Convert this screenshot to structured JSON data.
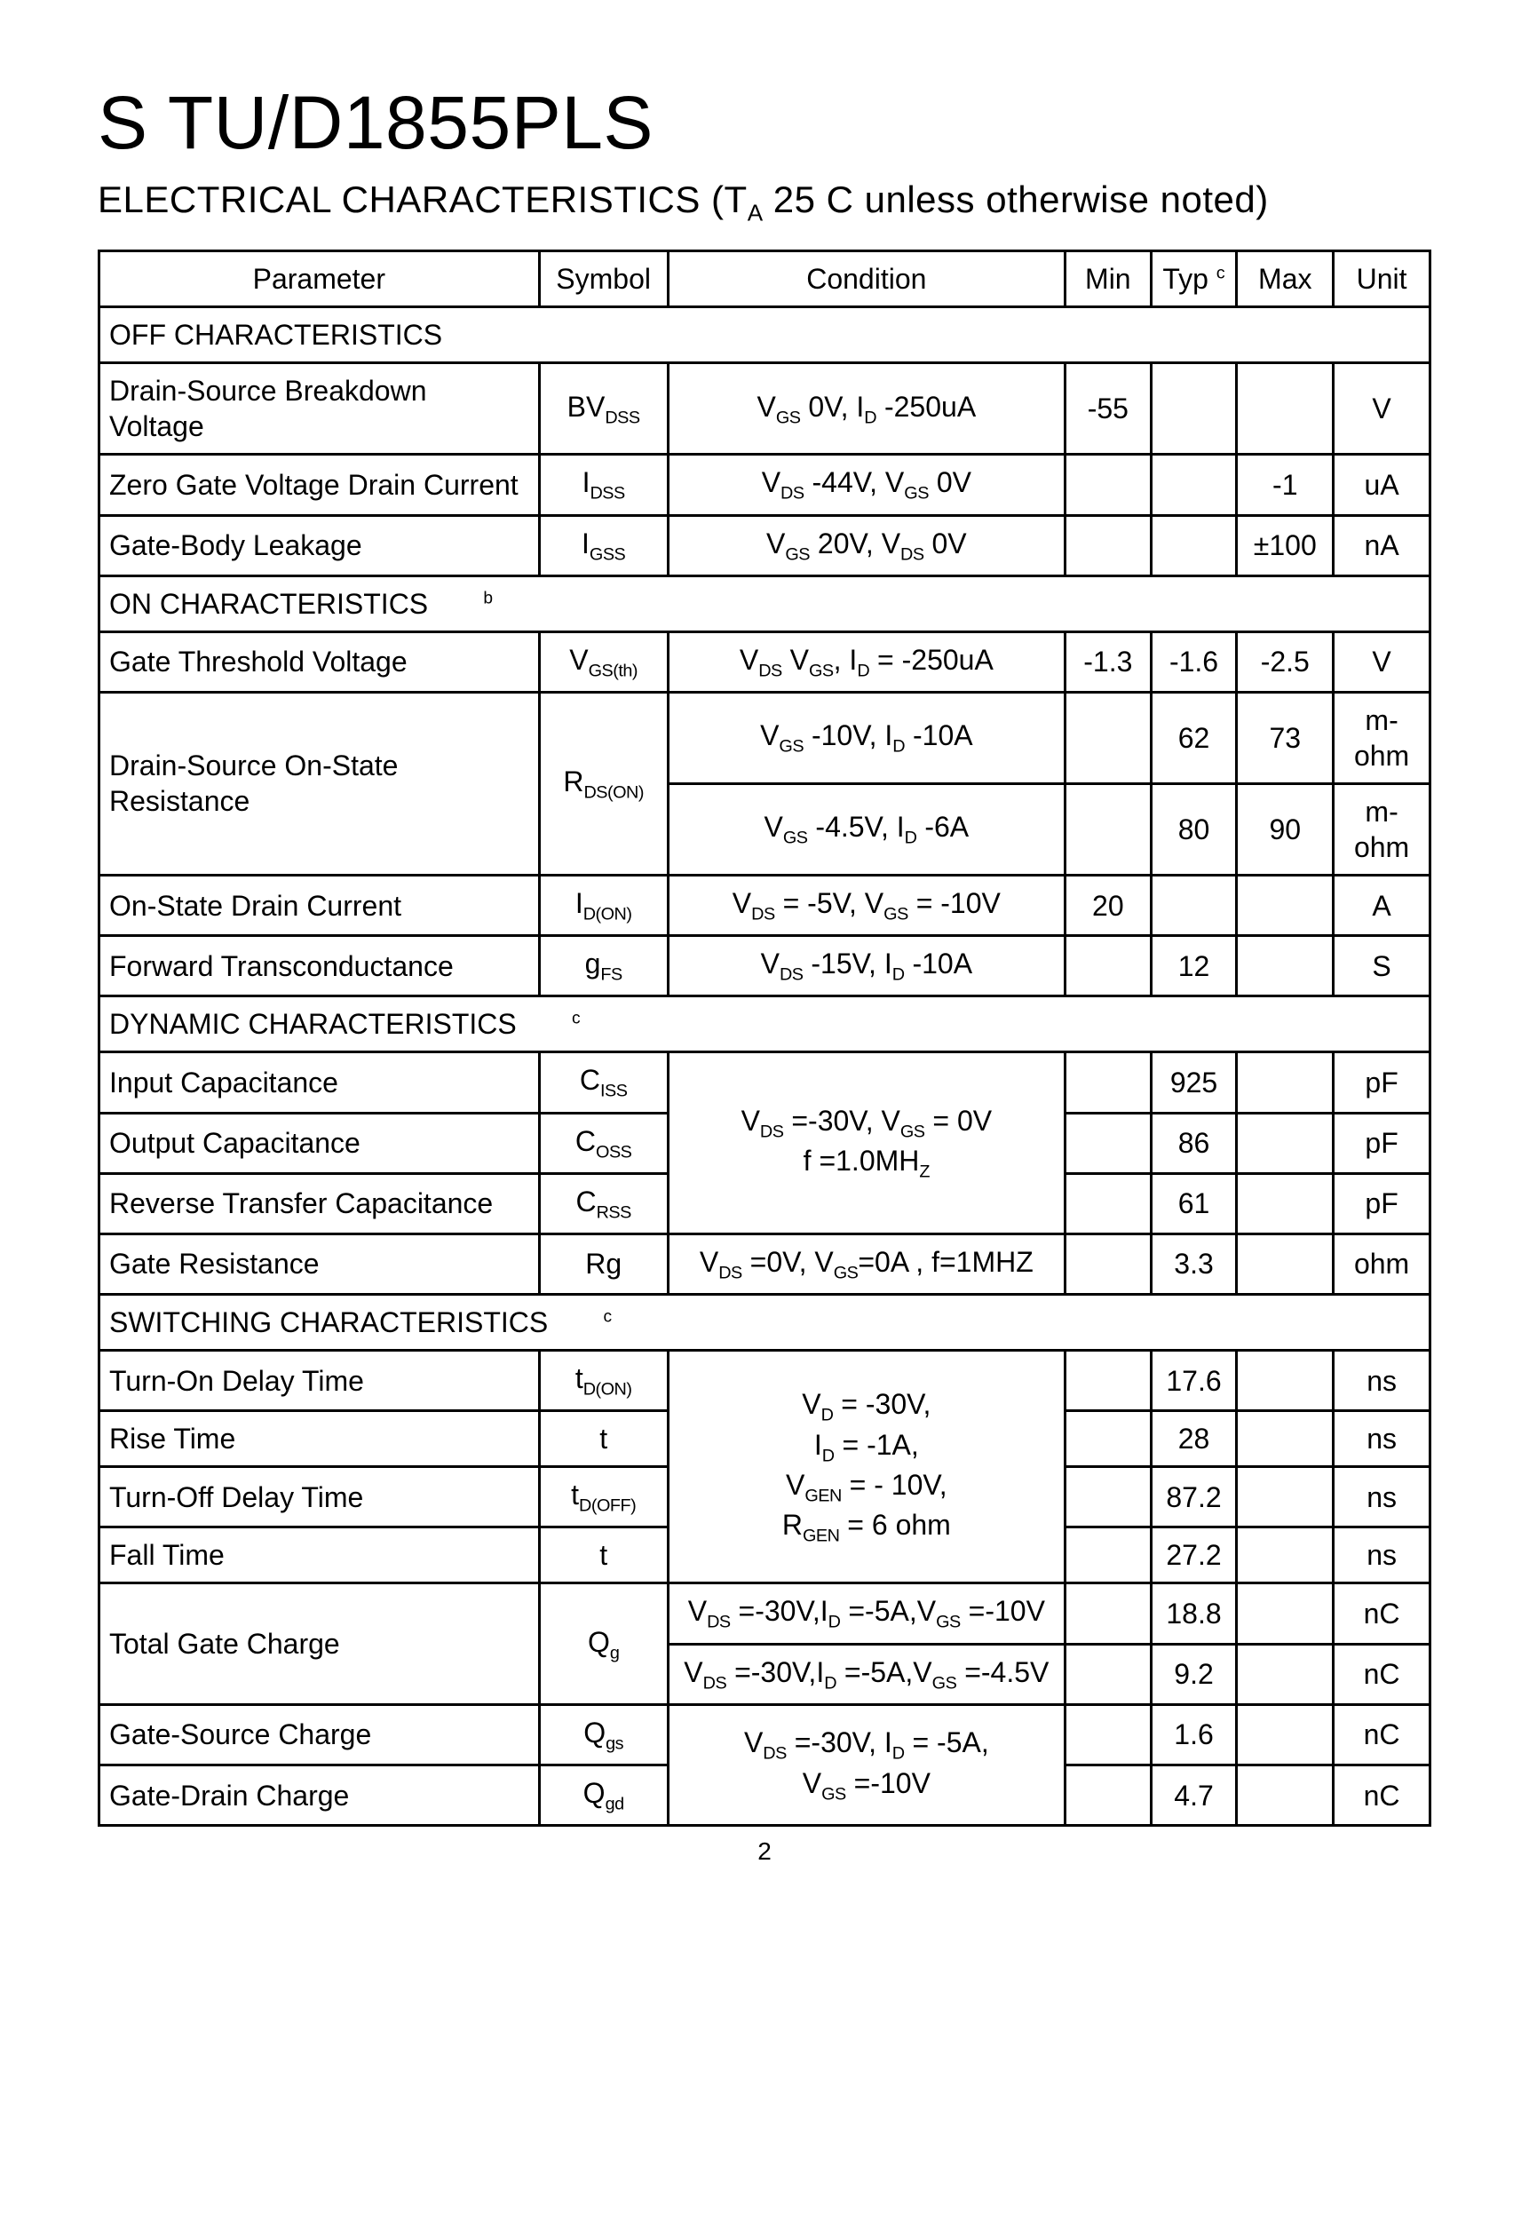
{
  "title": "S TU/D1855PLS",
  "subtitle_html": "ELECTRICAL  CHARACTERISTICS   (T<sub>A</sub>  25  C  unless otherwise noted)",
  "page_number": "2",
  "table": {
    "header": {
      "parameter": "Parameter",
      "symbol": "Symbol",
      "condition": "Condition",
      "min": "Min",
      "typ_html": "Typ <sup>c</sup>",
      "max": "Max",
      "unit": "Unit"
    },
    "sections": [
      {
        "title": "OFF CHARACTERISTICS",
        "title_sup": "",
        "rows": [
          {
            "parameter": "Drain-Source Breakdown Voltage",
            "symbol_html": "BV<sub>DSS</sub>",
            "condition_html": "V<sub>GS</sub>  0V, I<sub>D</sub>  -250uA",
            "min": "-55",
            "typ": "",
            "max": "",
            "unit": "V"
          },
          {
            "parameter": "Zero Gate Voltage Drain Current",
            "symbol_html": "I<sub>DSS</sub>",
            "condition_html": "V<sub>DS</sub>  -44V, V<sub>GS</sub>  0V",
            "min": "",
            "typ": "",
            "max": "-1",
            "unit": "uA"
          },
          {
            "parameter": "Gate-Body Leakage",
            "symbol_html": "I<sub>GSS</sub>",
            "condition_html": "V<sub>GS</sub>   20V, V<sub>DS</sub>  0V",
            "min": "",
            "typ": "",
            "max": "±100",
            "unit": "nA"
          }
        ]
      },
      {
        "title": "ON CHARACTERISTICS",
        "title_sup": "b",
        "rows": [
          {
            "parameter": "Gate Threshold Voltage",
            "symbol_html": "V<sub>GS(th)</sub>",
            "condition_html": "V<sub>DS</sub>  V<sub>GS</sub>, I<sub>D</sub> = -250uA",
            "min": "-1.3",
            "typ": "-1.6",
            "max": "-2.5",
            "unit": "V"
          },
          {
            "parameter": "Drain-Source On-State Resistance",
            "param_rowspan": 2,
            "symbol_html": "R<sub>DS(ON)</sub>",
            "symbol_rowspan": 2,
            "condition_html": "V<sub>GS</sub>  -10V, I<sub>D</sub>  -10A",
            "min": "",
            "typ": "62",
            "max": "73",
            "unit": "m-ohm"
          },
          {
            "parameter": "",
            "condition_html": "V<sub>GS</sub>  -4.5V, I<sub>D</sub>  -6A",
            "min": "",
            "typ": "80",
            "max": "90",
            "unit": "m-ohm"
          },
          {
            "parameter": "On-State Drain Current",
            "symbol_html": "I<sub>D(ON)</sub>",
            "condition_html": "V<sub>DS</sub> = -5V, V<sub>GS</sub> = -10V",
            "min": "20",
            "typ": "",
            "max": "",
            "unit": "A"
          },
          {
            "parameter": "Forward Transconductance",
            "symbol_html": "g<sub>FS</sub>",
            "condition_html": "V<sub>DS</sub>  -15V, I<sub>D</sub>  -10A",
            "min": "",
            "typ": "12",
            "max": "",
            "unit": "S"
          }
        ]
      },
      {
        "title": "DYNAMIC CHARACTERISTICS",
        "title_sup": "c",
        "rows": [
          {
            "parameter": "Input Capacitance",
            "symbol_html": "C<sub>ISS</sub>",
            "condition_html": "V<sub>DS</sub> =-30V, V<sub>GS</sub> = 0V<br>f =1.0MH<sub>Z</sub>",
            "cond_rowspan": 3,
            "min": "",
            "typ": "925",
            "max": "",
            "unit": "pF"
          },
          {
            "parameter": "Output Capacitance",
            "symbol_html": "C<sub>OSS</sub>",
            "min": "",
            "typ": "86",
            "max": "",
            "unit": "pF"
          },
          {
            "parameter": "Reverse Transfer Capacitance",
            "symbol_html": "C<sub>RSS</sub>",
            "min": "",
            "typ": "61",
            "max": "",
            "unit": "pF"
          },
          {
            "parameter": "Gate Resistance",
            "symbol_html": "Rg",
            "condition_html": "V<sub>DS</sub> =0V, V<sub>GS</sub>=0A , f=1MHZ",
            "min": "",
            "typ": "3.3",
            "max": "",
            "unit": "ohm"
          }
        ]
      },
      {
        "title": "SWITCHING CHARACTERISTICS",
        "title_sup": "c",
        "rows": [
          {
            "parameter": "Turn-On Delay Time",
            "symbol_html": "t<sub>D(ON)</sub>",
            "condition_html": "V<sub>D</sub> = -30V,<br>I<sub>D</sub> = -1A,<br>V<sub>GEN</sub> = - 10V,<br>R<sub>GEN</sub> = 6 ohm",
            "cond_rowspan": 4,
            "min": "",
            "typ": "17.6",
            "max": "",
            "unit": "ns"
          },
          {
            "parameter": "Rise Time",
            "symbol_html": "t",
            "min": "",
            "typ": "28",
            "max": "",
            "unit": "ns"
          },
          {
            "parameter": "Turn-Off Delay Time",
            "symbol_html": "t<sub>D(OFF)</sub>",
            "min": "",
            "typ": "87.2",
            "max": "",
            "unit": "ns"
          },
          {
            "parameter": "Fall Time",
            "symbol_html": "t",
            "min": "",
            "typ": "27.2",
            "max": "",
            "unit": "ns"
          },
          {
            "parameter": "Total Gate Charge",
            "param_rowspan": 2,
            "symbol_html": "Q<sub>g</sub>",
            "symbol_rowspan": 2,
            "condition_html": "V<sub>DS</sub> =-30V,I<sub>D</sub> =-5A,V<sub>GS</sub> =-10V",
            "min": "",
            "typ": "18.8",
            "max": "",
            "unit": "nC"
          },
          {
            "parameter": "",
            "condition_html": "V<sub>DS</sub> =-30V,I<sub>D</sub> =-5A,V<sub>GS</sub> =-4.5V",
            "min": "",
            "typ": "9.2",
            "max": "",
            "unit": "nC"
          },
          {
            "parameter": "Gate-Source Charge",
            "symbol_html": "Q<sub>gs</sub>",
            "condition_html": "V<sub>DS</sub> =-30V, I<sub>D</sub> = -5A,<br>V<sub>GS</sub> =-10V",
            "cond_rowspan": 2,
            "min": "",
            "typ": "1.6",
            "max": "",
            "unit": "nC"
          },
          {
            "parameter": "Gate-Drain Charge",
            "symbol_html": "Q<sub>gd</sub>",
            "min": "",
            "typ": "4.7",
            "max": "",
            "unit": "nC"
          }
        ]
      }
    ]
  }
}
